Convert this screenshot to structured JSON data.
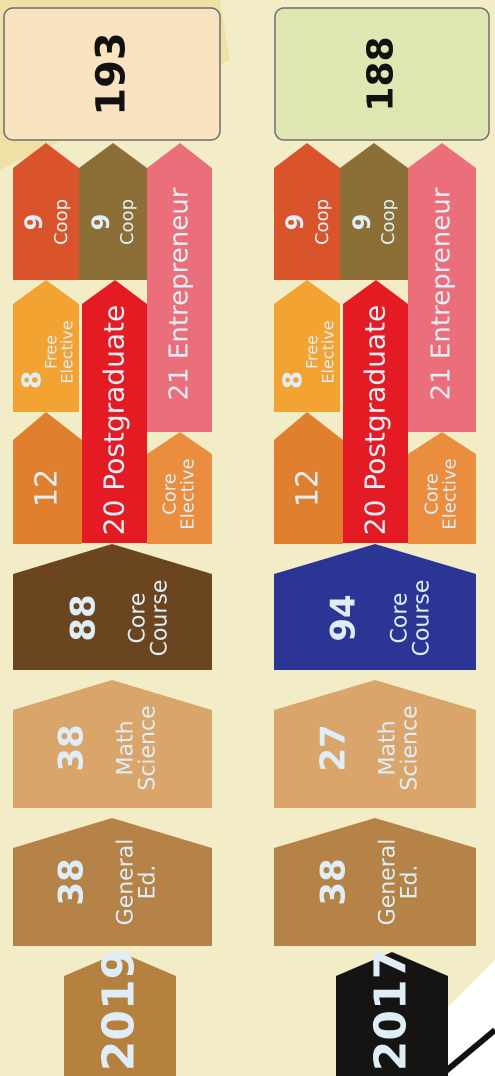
{
  "colors": {
    "background": "#f3edc7",
    "total_2019_bg": "#fae3c0",
    "total_2017_bg": "#dfe6b2",
    "year_2019_bg": "#b5813f",
    "year_2017_bg": "#161412",
    "general_ed": "#b58247",
    "math_science": "#d9a56b",
    "core_course_2019": "#6b4420",
    "core_course_2017": "#2a3594",
    "core_elective_count": "#e0802e",
    "core_elective": "#ea8d3e",
    "free_elective": "#f3a332",
    "postgraduate": "#e51b24",
    "entrepreneur": "#eb6f7a",
    "coop_1": "#d9542b",
    "coop_2": "#8b6f36",
    "light_text": "#dfeef6"
  },
  "curricula": [
    {
      "year": "2019",
      "total": "193",
      "general_ed": {
        "value": "38",
        "label_1": "General",
        "label_2": "Ed."
      },
      "math_science": {
        "value": "38",
        "label_1": "Math",
        "label_2": "Science"
      },
      "core_course": {
        "value": "88",
        "label_1": "Core",
        "label_2": "Course"
      },
      "core_elective_count": "12",
      "core_elective": {
        "label_1": "Core",
        "label_2": "Elective"
      },
      "postgraduate": {
        "value": "20",
        "label": "Postgraduate"
      },
      "free_elective": {
        "value": "8",
        "label_1": "Free",
        "label_2": "Elective"
      },
      "entrepreneur": {
        "value": "21",
        "label": "Entrepreneur"
      },
      "coop_1": {
        "value": "9",
        "label": "Coop"
      },
      "coop_2": {
        "value": "9",
        "label": "Coop"
      }
    },
    {
      "year": "2017",
      "total": "188",
      "general_ed": {
        "value": "38",
        "label_1": "General",
        "label_2": "Ed."
      },
      "math_science": {
        "value": "27",
        "label_1": "Math",
        "label_2": "Science"
      },
      "core_course": {
        "value": "94",
        "label_1": "Core",
        "label_2": "Course"
      },
      "core_elective_count": "12",
      "core_elective": {
        "label_1": "Core",
        "label_2": "Elective"
      },
      "postgraduate": {
        "value": "20",
        "label": "Postgraduate"
      },
      "free_elective": {
        "value": "8",
        "label_1": "Free",
        "label_2": "Elective"
      },
      "entrepreneur": {
        "value": "21",
        "label": "Entrepreneur"
      },
      "coop_1": {
        "value": "9",
        "label": "Coop"
      },
      "coop_2": {
        "value": "9",
        "label": "Coop"
      }
    }
  ]
}
